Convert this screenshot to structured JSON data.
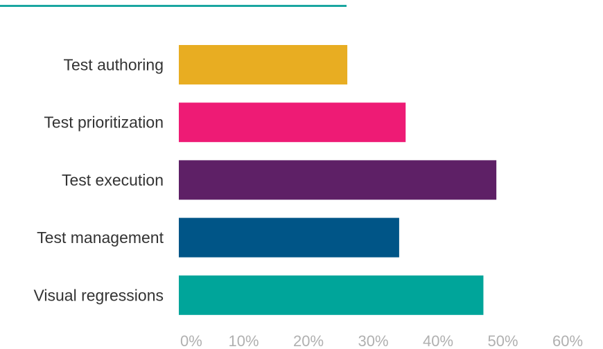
{
  "colors": {
    "accent_rule": "#1aa6a0",
    "label_text": "#333333",
    "tick_text": "#b0b0b0"
  },
  "chart_data": {
    "type": "bar",
    "orientation": "horizontal",
    "categories": [
      "Test authoring",
      "Test prioritization",
      "Test execution",
      "Test management",
      "Visual regressions"
    ],
    "values": [
      26,
      35,
      49,
      34,
      47
    ],
    "bar_colors": [
      "#e8ad22",
      "#ee1b75",
      "#5e2066",
      "#005587",
      "#00a59a"
    ],
    "xlim": [
      0,
      60
    ],
    "xticks": [
      0,
      10,
      20,
      30,
      40,
      50,
      60
    ],
    "xtick_labels": [
      "0%",
      "10%",
      "20%",
      "30%",
      "40%",
      "50%",
      "60%"
    ],
    "value_unit": "%",
    "grid": false,
    "legend": "none"
  }
}
